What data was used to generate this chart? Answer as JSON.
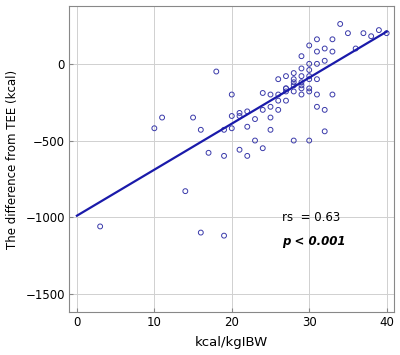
{
  "title": "",
  "xlabel": "kcal/kgIBW",
  "ylabel": "The difference from TEE (kcal)",
  "xlim": [
    -1,
    41
  ],
  "ylim": [
    -1620,
    380
  ],
  "xticks": [
    0,
    10,
    20,
    30,
    40
  ],
  "yticks": [
    -1500,
    -1000,
    -500,
    0
  ],
  "dot_color": "#3a3aaa",
  "line_color": "#1a1aaa",
  "background_color": "#ffffff",
  "grid_color": "#d0d0d0",
  "annotation_rs": "rs  = 0.63",
  "annotation_p": "p < 0.001",
  "scatter_x": [
    3,
    10,
    11,
    14,
    15,
    16,
    16,
    17,
    18,
    19,
    19,
    19,
    20,
    20,
    20,
    21,
    21,
    21,
    22,
    22,
    22,
    23,
    23,
    24,
    24,
    24,
    25,
    25,
    25,
    25,
    26,
    26,
    26,
    26,
    27,
    27,
    27,
    27,
    27,
    28,
    28,
    28,
    28,
    28,
    28,
    29,
    29,
    29,
    29,
    29,
    29,
    29,
    30,
    30,
    30,
    30,
    30,
    30,
    30,
    30,
    31,
    31,
    31,
    31,
    31,
    31,
    32,
    32,
    32,
    32,
    33,
    33,
    33,
    34,
    35,
    36,
    37,
    38,
    39,
    40
  ],
  "scatter_y": [
    -1060,
    -420,
    -350,
    -830,
    -350,
    -1100,
    -430,
    -580,
    -50,
    -600,
    -430,
    -1120,
    -340,
    -420,
    -200,
    -340,
    -560,
    -320,
    -410,
    -600,
    -310,
    -360,
    -500,
    -300,
    -550,
    -190,
    -200,
    -430,
    -350,
    -280,
    -240,
    -100,
    -200,
    -300,
    -160,
    -80,
    -180,
    -240,
    -160,
    -120,
    -60,
    -180,
    -100,
    -140,
    -500,
    -140,
    -200,
    -160,
    -120,
    50,
    -80,
    -30,
    -160,
    -100,
    0,
    -40,
    -80,
    120,
    -180,
    -500,
    0,
    80,
    160,
    -100,
    -200,
    -280,
    20,
    100,
    -440,
    -300,
    80,
    160,
    -200,
    260,
    200,
    100,
    200,
    180,
    220,
    200
  ],
  "line_x0": 0,
  "line_x1": 40,
  "line_y0": -990,
  "line_y1": 210,
  "marker_size": 3.5,
  "marker_linewidth": 0.7,
  "ann_x": 26.5,
  "ann_y_rs": -1000,
  "ann_y_p": -1160
}
